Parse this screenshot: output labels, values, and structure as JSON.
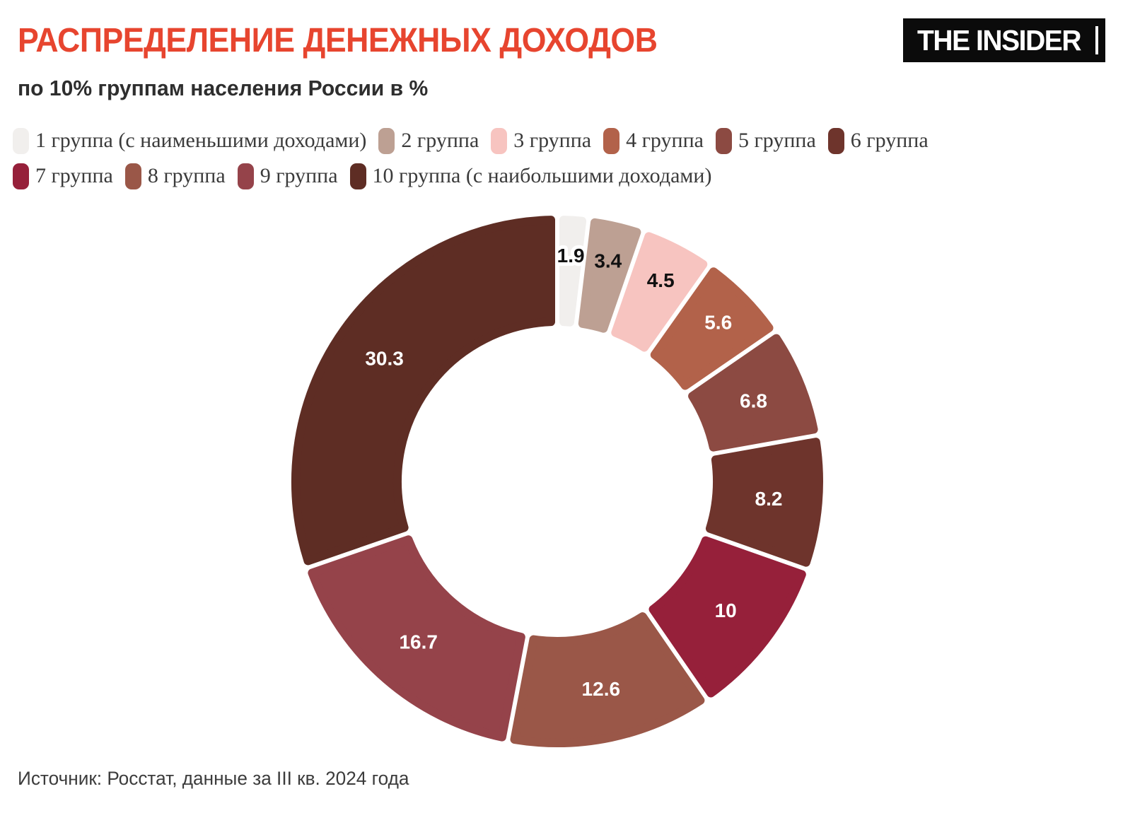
{
  "logo": {
    "text": "THE INSIDER",
    "bg_color": "#0b0b0b",
    "fg_color": "#ffffff"
  },
  "chart_data": {
    "type": "pie",
    "subtype": "donut",
    "title": "РАСПРЕДЕЛЕНИЕ ДЕНЕЖНЫХ ДОХОДОВ",
    "subtitle": "по 10% группам населения России в %",
    "source": "Источник: Росстат, данные за III кв. 2024 года",
    "unit": "%",
    "title_color": "#e7452f",
    "categories": [
      "1 группа (с наименьшими доходами)",
      "2 группа",
      "3 группа",
      "4 группа",
      "5 группа",
      "6 группа",
      "7 группа",
      "8 группа",
      "9 группа",
      "10 группа (с наибольшими доходами)"
    ],
    "values": [
      1.9,
      3.4,
      4.5,
      5.6,
      6.8,
      8.2,
      10,
      12.6,
      16.7,
      30.3
    ],
    "labels": [
      "1.9",
      "3.4",
      "4.5",
      "5.6",
      "6.8",
      "8.2",
      "10",
      "12.6",
      "16.7",
      "30.3"
    ],
    "colors": [
      "#f1efed",
      "#bda093",
      "#f7c4c0",
      "#b2624a",
      "#8c4a42",
      "#6e342c",
      "#96203a",
      "#9a5748",
      "#95434a",
      "#5e2d24"
    ],
    "label_colors": [
      "#111111",
      "#111111",
      "#111111",
      "#ffffff",
      "#ffffff",
      "#ffffff",
      "#ffffff",
      "#ffffff",
      "#ffffff",
      "#ffffff"
    ],
    "start_angle_deg": 0,
    "direction": "clockwise",
    "inner_radius_ratio": 0.59,
    "legend_position": "top",
    "legend_rows": [
      6,
      4
    ]
  }
}
